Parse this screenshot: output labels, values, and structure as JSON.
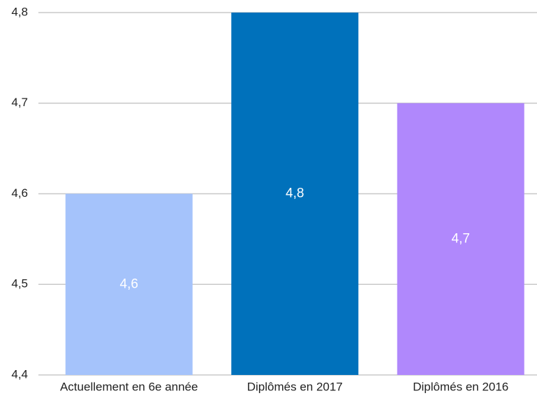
{
  "chart_data": {
    "type": "bar",
    "categories": [
      "Actuellement en 6e année",
      "Diplômés en 2017",
      "Diplômés en 2016"
    ],
    "values": [
      4.6,
      4.8,
      4.7
    ],
    "value_labels": [
      "4,6",
      "4,8",
      "4,7"
    ],
    "colors": [
      "#a5c3fb",
      "#0071bb",
      "#b088fc"
    ],
    "ylim": [
      4.4,
      4.8
    ],
    "yticks": [
      {
        "value": 4.4,
        "label": "4,4"
      },
      {
        "value": 4.5,
        "label": "4,5"
      },
      {
        "value": 4.6,
        "label": "4,6"
      },
      {
        "value": 4.7,
        "label": "4,7"
      },
      {
        "value": 4.8,
        "label": "4,8"
      }
    ],
    "grid": true
  }
}
